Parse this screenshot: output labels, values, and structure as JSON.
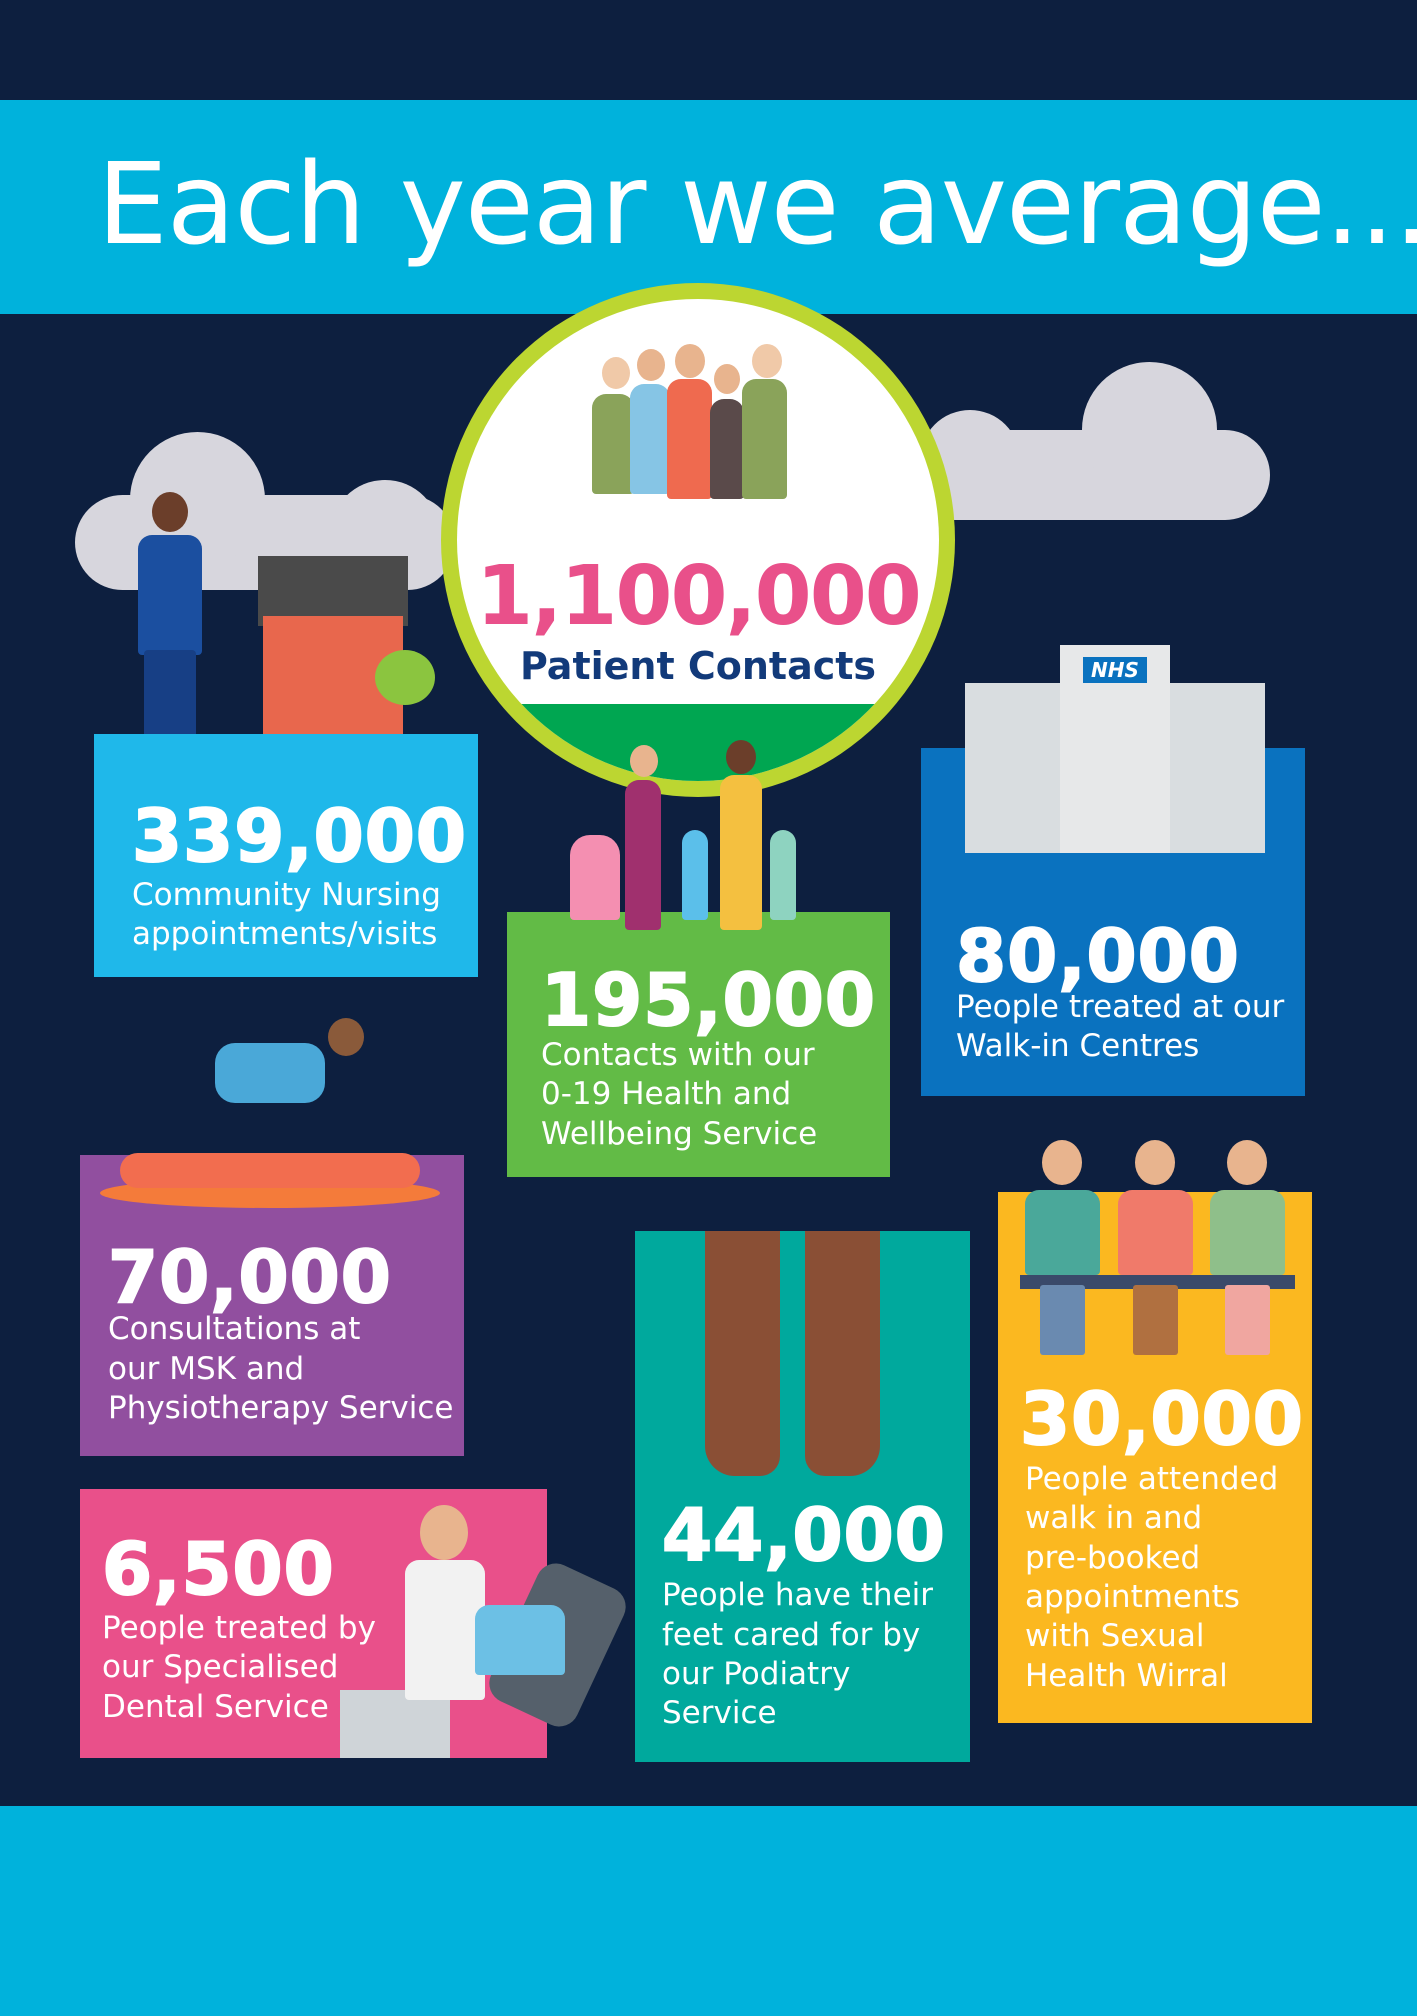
{
  "header": {
    "title": "Each year we average..."
  },
  "center": {
    "value": "1,100,000",
    "label": "Patient Contacts"
  },
  "stats": [
    {
      "value": "339,000",
      "lines": [
        "Community Nursing",
        "appointments/visits"
      ],
      "color": "#1fb8ea"
    },
    {
      "value": "195,000",
      "lines": [
        "Contacts with our",
        "0-19 Health and",
        "Wellbeing Service"
      ],
      "color": "#62bb46"
    },
    {
      "value": "80,000",
      "lines": [
        "People treated at our",
        "Walk-in Centres"
      ],
      "color": "#0a72bf"
    },
    {
      "value": "70,000",
      "lines": [
        "Consultations at",
        "our MSK and",
        "Physiotherapy Service"
      ],
      "color": "#914f9f"
    },
    {
      "value": "6,500",
      "lines": [
        "People treated by",
        "our Specialised",
        "Dental Service"
      ],
      "color": "#e9508a"
    },
    {
      "value": "44,000",
      "lines": [
        "People have their",
        "feet cared for by",
        "our Podiatry",
        "Service"
      ],
      "color": "#00a99d"
    },
    {
      "value": "30,000",
      "lines": [
        "People attended",
        "walk in and",
        "pre-booked",
        "appointments",
        "with Sexual",
        "Health Wirral"
      ],
      "color": "#fbb820"
    }
  ],
  "hospital_sign": "NHS",
  "colors": {
    "background": "#0d1f3f",
    "header": "#00b2dc",
    "accent_pink": "#e9508a",
    "ring": "#bcd631"
  }
}
